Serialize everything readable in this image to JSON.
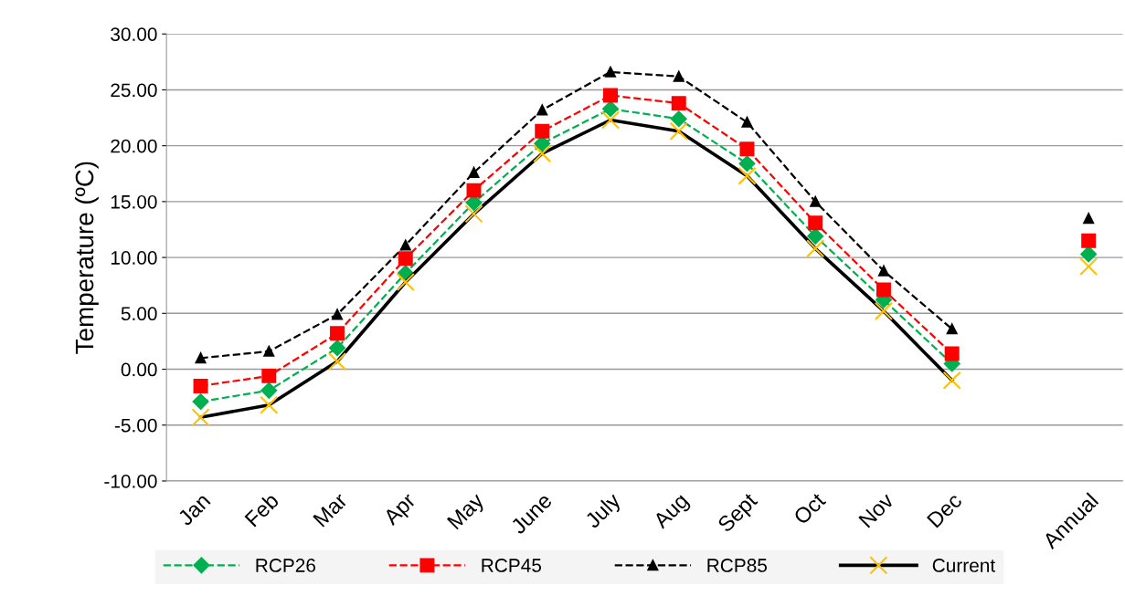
{
  "chart_data": {
    "type": "line",
    "ylabel": "Temperature (ºC)",
    "categories": [
      "Jan",
      "Feb",
      "Mar",
      "Apr",
      "May",
      "June",
      "July",
      "Aug",
      "Sept",
      "Oct",
      "Nov",
      "Dec",
      null,
      "Annual"
    ],
    "series": [
      {
        "name": "RCP26",
        "color": "#00b050",
        "marker": "diamond",
        "line_style": "dashed",
        "values": [
          -2.9,
          -1.9,
          1.9,
          8.6,
          14.9,
          20.2,
          23.3,
          22.4,
          18.4,
          11.9,
          6.2,
          0.5,
          null,
          10.3
        ]
      },
      {
        "name": "RCP45",
        "color": "#ff0000",
        "marker": "square",
        "line_style": "dashed",
        "values": [
          -1.5,
          -0.6,
          3.2,
          9.9,
          16.0,
          21.3,
          24.5,
          23.8,
          19.7,
          13.1,
          7.1,
          1.4,
          null,
          11.5
        ]
      },
      {
        "name": "RCP85",
        "color": "#000000",
        "marker": "triangle",
        "line_style": "dashed",
        "values": [
          1.0,
          1.6,
          4.9,
          11.1,
          17.6,
          23.2,
          26.6,
          26.2,
          22.1,
          15.0,
          8.8,
          3.6,
          null,
          13.5
        ]
      },
      {
        "name": "Current",
        "color": "#000000",
        "colors": [
          "#ffc000",
          "#ffc000",
          "#ffc000",
          "#ffc000",
          "#ffc000",
          "#ffc000",
          "#ffc000",
          "#ffc000",
          "#ffc000",
          "#ffc000",
          "#ffc000",
          "#ffc000",
          "#ffc000",
          "#ffc000"
        ],
        "marker": "cross",
        "line_style": "solid",
        "values": [
          -4.3,
          -3.2,
          0.7,
          7.8,
          13.9,
          19.3,
          22.3,
          21.3,
          17.3,
          10.8,
          5.2,
          -1.0,
          null,
          9.2
        ]
      }
    ],
    "ylim": [
      -10,
      30
    ],
    "yticks": [
      {
        "value": -10,
        "label": "-10.00"
      },
      {
        "value": -5,
        "label": "-5.00"
      },
      {
        "value": 0,
        "label": "0.00"
      },
      {
        "value": 5,
        "label": "5.00"
      },
      {
        "value": 10,
        "label": "10.00"
      },
      {
        "value": 15,
        "label": "15.00"
      },
      {
        "value": 20,
        "label": "20.00"
      },
      {
        "value": 25,
        "label": "25.00"
      },
      {
        "value": 30,
        "label": "30.00"
      }
    ],
    "grid": "y",
    "legend": "bottom"
  }
}
